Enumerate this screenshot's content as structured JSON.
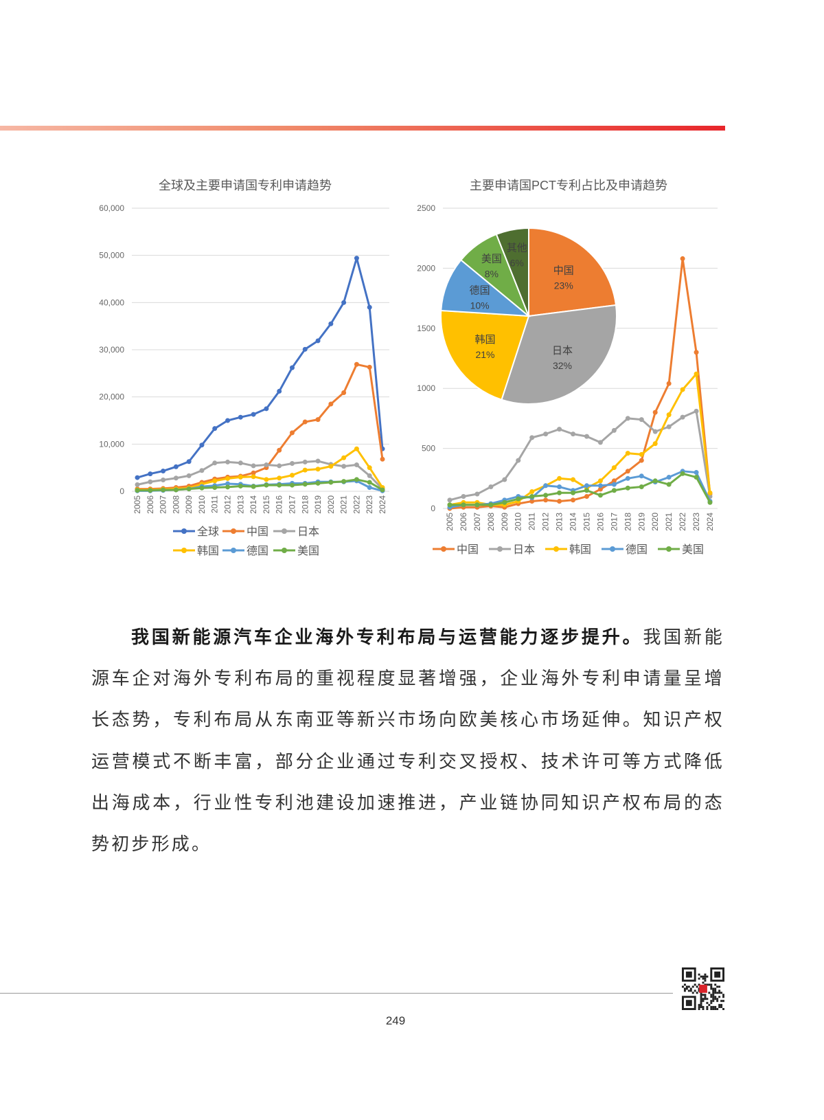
{
  "page_number": "249",
  "paragraph": {
    "lead": "我国新能源汽车企业海外专利布局与运营能力逐步提升。",
    "body": "我国新能源车企对海外专利布局的重视程度显著增强，企业海外专利申请量呈增长态势，专利布局从东南亚等新兴市场向欧美核心市场延伸。知识产权运营模式不断丰富，部分企业通过专利交叉授权、技术许可等方式降低出海成本，行业性专利池建设加速推进，产业链协同知识产权布局的态势初步形成。"
  },
  "colors": {
    "全球": "#4472c4",
    "中国": "#ed7d31",
    "日本": "#a5a5a5",
    "韩国": "#ffc000",
    "德国": "#5b9bd5",
    "美国": "#70ad47",
    "其他": "#4e6e30",
    "topbar": "#e8262b"
  },
  "chart_data": [
    {
      "type": "line",
      "title": "全球及主要申请国专利申请趋势",
      "categories": [
        "2005",
        "2006",
        "2007",
        "2008",
        "2009",
        "2010",
        "2011",
        "2012",
        "2013",
        "2014",
        "2015",
        "2016",
        "2017",
        "2018",
        "2019",
        "2020",
        "2021",
        "2022",
        "2023",
        "2024"
      ],
      "ylim": [
        0,
        60000
      ],
      "yticks": [
        "0",
        "10,000",
        "20,000",
        "30,000",
        "40,000",
        "50,000",
        "60,000"
      ],
      "grid": true,
      "legend": "bottom",
      "series": [
        {
          "name": "全球",
          "values": [
            2900,
            3700,
            4300,
            5200,
            6300,
            9800,
            13300,
            15000,
            15700,
            16300,
            17500,
            21200,
            26200,
            30100,
            31900,
            35500,
            40000,
            49400,
            39000,
            9000
          ]
        },
        {
          "name": "中国",
          "values": [
            500,
            500,
            600,
            800,
            1100,
            1900,
            2600,
            3000,
            3200,
            3900,
            5000,
            8700,
            12400,
            14700,
            15200,
            18500,
            20900,
            26900,
            26300,
            6800
          ]
        },
        {
          "name": "日本",
          "values": [
            1400,
            2000,
            2400,
            2800,
            3300,
            4400,
            6000,
            6200,
            6000,
            5400,
            5600,
            5400,
            5900,
            6200,
            6400,
            5700,
            5300,
            5600,
            3300,
            500
          ]
        },
        {
          "name": "韩国",
          "values": [
            300,
            300,
            400,
            500,
            700,
            1500,
            2200,
            2700,
            3000,
            3100,
            2500,
            2800,
            3400,
            4500,
            4700,
            5300,
            7100,
            9000,
            5000,
            800
          ]
        },
        {
          "name": "德国",
          "values": [
            100,
            100,
            200,
            300,
            500,
            1000,
            1200,
            1600,
            1500,
            1100,
            1400,
            1500,
            1700,
            1700,
            2000,
            2000,
            2000,
            2200,
            800,
            100
          ]
        },
        {
          "name": "美国",
          "values": [
            200,
            200,
            300,
            300,
            500,
            700,
            800,
            900,
            1100,
            1000,
            1300,
            1300,
            1300,
            1500,
            1700,
            1900,
            2100,
            2500,
            1900,
            300
          ]
        }
      ]
    },
    {
      "type": "line",
      "title": "主要申请国PCT专利占比及申请趋势",
      "categories": [
        "2005",
        "2006",
        "2007",
        "2008",
        "2009",
        "2010",
        "2011",
        "2012",
        "2013",
        "2014",
        "2015",
        "2016",
        "2017",
        "2018",
        "2019",
        "2020",
        "2021",
        "2022",
        "2023",
        "2024"
      ],
      "ylim": [
        0,
        2500
      ],
      "yticks": [
        "0",
        "500",
        "1000",
        "1500",
        "2000",
        "2500"
      ],
      "grid": true,
      "legend": "bottom",
      "series": [
        {
          "name": "中国",
          "values": [
            0,
            10,
            10,
            20,
            10,
            40,
            60,
            70,
            60,
            70,
            100,
            160,
            230,
            310,
            400,
            800,
            1040,
            2080,
            1300,
            120
          ]
        },
        {
          "name": "日本",
          "values": [
            70,
            100,
            120,
            180,
            240,
            400,
            590,
            620,
            660,
            620,
            600,
            550,
            650,
            750,
            740,
            640,
            680,
            760,
            810,
            100
          ]
        },
        {
          "name": "韩国",
          "values": [
            30,
            50,
            50,
            30,
            30,
            60,
            140,
            190,
            250,
            240,
            170,
            230,
            340,
            460,
            450,
            540,
            780,
            990,
            1120,
            130
          ]
        },
        {
          "name": "德国",
          "values": [
            10,
            30,
            30,
            40,
            70,
            100,
            90,
            190,
            180,
            150,
            190,
            190,
            200,
            250,
            270,
            220,
            260,
            310,
            300,
            60
          ]
        },
        {
          "name": "美国",
          "values": [
            30,
            30,
            30,
            30,
            50,
            80,
            100,
            110,
            130,
            130,
            150,
            110,
            150,
            170,
            180,
            230,
            200,
            290,
            260,
            50
          ]
        }
      ]
    },
    {
      "type": "pie",
      "slices": [
        {
          "label": "中国",
          "value": 23,
          "text": "23%"
        },
        {
          "label": "日本",
          "value": 32,
          "text": "32%"
        },
        {
          "label": "韩国",
          "value": 21,
          "text": "21%"
        },
        {
          "label": "德国",
          "value": 10,
          "text": "10%"
        },
        {
          "label": "美国",
          "value": 8,
          "text": "8%"
        },
        {
          "label": "其他",
          "value": 6,
          "text": "6%"
        }
      ]
    }
  ]
}
